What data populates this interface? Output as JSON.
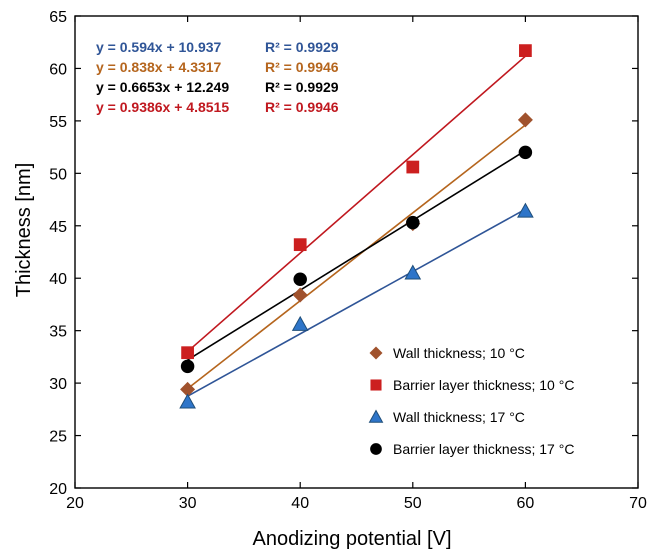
{
  "chart_data": {
    "type": "scatter",
    "title": "",
    "xlabel": "Anodizing potential [V]",
    "ylabel": "Thickness [nm]",
    "xlim": [
      20,
      70
    ],
    "ylim": [
      20,
      65
    ],
    "x_ticks": [
      20,
      30,
      40,
      50,
      60,
      70
    ],
    "y_ticks": [
      20,
      25,
      30,
      35,
      40,
      45,
      50,
      55,
      60,
      65
    ],
    "grid": false,
    "legend_position": "bottom-right",
    "series": [
      {
        "name": "Wall thickness; 10 °C",
        "marker": "diamond",
        "color": "#A0522D",
        "x": [
          30,
          40,
          50,
          60
        ],
        "y": [
          29.4,
          38.4,
          45.2,
          55.1
        ],
        "fit": {
          "slope": 0.838,
          "intercept": 4.3317,
          "equation": "y = 0.838x + 4.3317",
          "r2": "R² = 0.9946",
          "color": "#B5651D"
        }
      },
      {
        "name": "Barrier layer thickness; 10 °C",
        "marker": "square",
        "color": "#CC1F1F",
        "x": [
          30,
          40,
          50,
          60
        ],
        "y": [
          32.9,
          43.2,
          50.6,
          61.7
        ],
        "fit": {
          "slope": 0.9386,
          "intercept": 4.8515,
          "equation": "y = 0.9386x + 4.8515",
          "r2": "R² = 0.9946",
          "color": "#C0181F"
        }
      },
      {
        "name": "Wall thickness; 17 °C",
        "marker": "triangle",
        "color": "#2E75C9",
        "x": [
          30,
          40,
          50,
          60
        ],
        "y": [
          28.2,
          35.6,
          40.5,
          46.4
        ],
        "fit": {
          "slope": 0.594,
          "intercept": 10.937,
          "equation": "y = 0.594x + 10.937",
          "r2": "R² = 0.9929",
          "color": "#2F5597"
        }
      },
      {
        "name": "Barrier layer thickness; 17 °C",
        "marker": "circle",
        "color": "#000000",
        "x": [
          30,
          40,
          50,
          60
        ],
        "y": [
          31.6,
          39.9,
          45.3,
          52.0
        ],
        "fit": {
          "slope": 0.6653,
          "intercept": 12.249,
          "equation": "y = 0.6653x + 12.249",
          "r2": "R² = 0.9929",
          "color": "#000000"
        }
      }
    ],
    "equation_order": [
      2,
      0,
      3,
      1
    ],
    "legend_order": [
      0,
      1,
      2,
      3
    ]
  }
}
